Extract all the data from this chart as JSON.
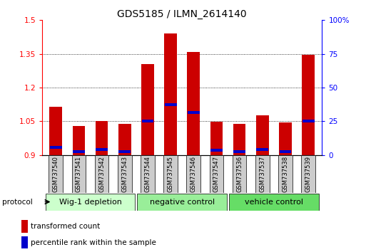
{
  "title": "GDS5185 / ILMN_2614140",
  "samples": [
    "GSM737540",
    "GSM737541",
    "GSM737542",
    "GSM737543",
    "GSM737544",
    "GSM737545",
    "GSM737546",
    "GSM737547",
    "GSM737536",
    "GSM737537",
    "GSM737538",
    "GSM737539"
  ],
  "red_values": [
    1.115,
    1.03,
    1.05,
    1.04,
    1.305,
    1.44,
    1.36,
    1.048,
    1.04,
    1.075,
    1.045,
    1.345
  ],
  "blue_values": [
    0.935,
    0.915,
    0.925,
    0.915,
    1.05,
    1.125,
    1.09,
    0.92,
    0.915,
    0.925,
    0.915,
    1.05
  ],
  "ymin": 0.9,
  "ymax": 1.5,
  "yticks_left": [
    0.9,
    1.05,
    1.2,
    1.35,
    1.5
  ],
  "yticks_right": [
    0,
    25,
    50,
    75,
    100
  ],
  "yticks_right_labels": [
    "0",
    "25",
    "50",
    "75",
    "100%"
  ],
  "groups": [
    {
      "label": "Wig-1 depletion",
      "start": 0,
      "end": 3,
      "color": "#ccffcc"
    },
    {
      "label": "negative control",
      "start": 4,
      "end": 7,
      "color": "#99ee99"
    },
    {
      "label": "vehicle control",
      "start": 8,
      "end": 11,
      "color": "#66dd66"
    }
  ],
  "bar_color": "#cc0000",
  "blue_color": "#0000cc",
  "bar_width": 0.55,
  "protocol_label": "protocol",
  "legend_red": "transformed count",
  "legend_blue": "percentile rank within the sample",
  "title_fontsize": 10,
  "tick_fontsize": 7.5,
  "sample_fontsize": 6,
  "group_fontsize": 8
}
